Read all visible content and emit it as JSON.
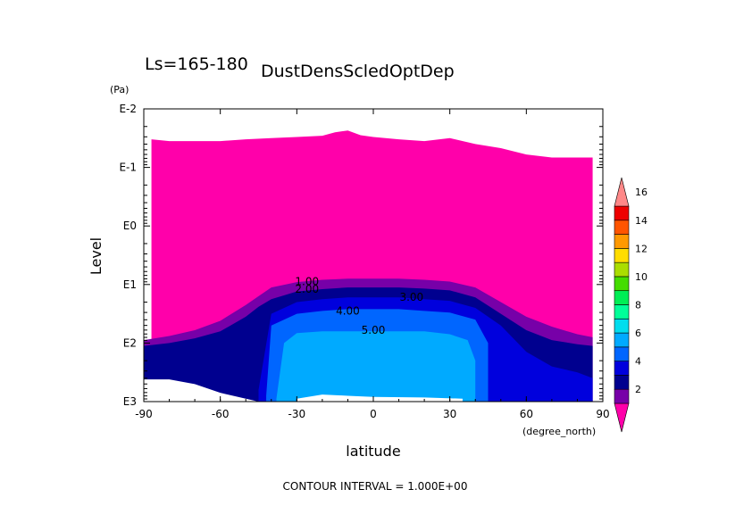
{
  "chart_data": {
    "type": "heatmap",
    "period_label": "Ls=165-180",
    "title": "DustDensScledOptDep",
    "xlabel": "latitude",
    "x_unit": "(degree_north)",
    "ylabel": "Level",
    "y_unit": "(Pa)",
    "footer": "CONTOUR INTERVAL = 1.000E+00",
    "x_ticks": [
      "-90",
      "-60",
      "-30",
      "0",
      "30",
      "60",
      "90"
    ],
    "y_ticks": [
      "E-2",
      "E-1",
      "E0",
      "E1",
      "E2",
      "E3"
    ],
    "xlim": [
      -90,
      90
    ],
    "ylim_log10": [
      -2,
      3
    ],
    "y_scale": "log",
    "colorbar": {
      "labels": [
        "2",
        "4",
        "6",
        "8",
        "10",
        "12",
        "14",
        "16"
      ],
      "colors": [
        "#ff00aa",
        "#7700a8",
        "#00008f",
        "#0000dd",
        "#0066ff",
        "#00aaff",
        "#00ddee",
        "#00ff99",
        "#00ee55",
        "#44dd00",
        "#aadd00",
        "#ffdd00",
        "#ff9900",
        "#ff5500",
        "#ee0000",
        "#ff8888"
      ]
    },
    "contour_labels": [
      "1.00",
      "2.00",
      "3.00",
      "4.00",
      "5.00"
    ],
    "series": [
      {
        "level": 1,
        "x": [
          -90,
          -80,
          -70,
          -60,
          -50,
          -45,
          -40,
          -30,
          -20,
          -10,
          0,
          10,
          20,
          30,
          40,
          50,
          60,
          70,
          80,
          86
        ],
        "y_log10": [
          1.95,
          1.88,
          1.78,
          1.62,
          1.35,
          1.2,
          1.05,
          0.96,
          0.92,
          0.9,
          0.9,
          0.9,
          0.92,
          0.95,
          1.05,
          1.3,
          1.55,
          1.72,
          1.85,
          1.9
        ]
      },
      {
        "level": 2,
        "x": [
          -90,
          -80,
          -70,
          -60,
          -50,
          -45,
          -40,
          -30,
          -20,
          -10,
          0,
          10,
          20,
          30,
          40,
          50,
          60,
          70,
          80,
          86
        ],
        "y_log10": [
          2.05,
          2.0,
          1.92,
          1.8,
          1.55,
          1.38,
          1.25,
          1.12,
          1.08,
          1.05,
          1.05,
          1.05,
          1.07,
          1.1,
          1.22,
          1.5,
          1.78,
          1.95,
          2.02,
          2.05
        ]
      },
      {
        "level": 3,
        "x": [
          -45,
          -40,
          -30,
          -20,
          -10,
          0,
          10,
          20,
          30,
          40,
          50,
          60,
          70,
          80,
          86
        ],
        "y_log10": [
          2.8,
          1.5,
          1.3,
          1.25,
          1.22,
          1.22,
          1.22,
          1.25,
          1.28,
          1.4,
          1.7,
          2.15,
          2.4,
          2.5,
          2.6
        ]
      },
      {
        "level": 4,
        "x": [
          -42,
          -40,
          -30,
          -20,
          -10,
          0,
          10,
          20,
          30,
          40,
          45
        ],
        "y_log10": [
          2.9,
          1.7,
          1.5,
          1.45,
          1.42,
          1.42,
          1.42,
          1.45,
          1.48,
          1.6,
          2.0
        ]
      },
      {
        "level": 5,
        "x": [
          -38,
          -35,
          -30,
          -20,
          -10,
          0,
          10,
          20,
          30,
          37,
          40
        ],
        "y_log10": [
          2.95,
          2.0,
          1.83,
          1.8,
          1.8,
          1.8,
          1.8,
          1.8,
          1.85,
          1.95,
          2.3
        ]
      }
    ]
  }
}
